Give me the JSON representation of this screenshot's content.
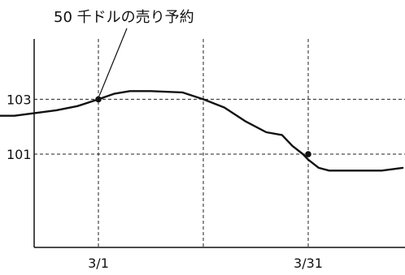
{
  "chart_data": {
    "type": "line",
    "title": "",
    "xlabel": "",
    "ylabel": "",
    "x_tick_labels": [
      "3/1",
      "3/31"
    ],
    "y_tick_labels": [
      "103",
      "101"
    ],
    "y_ticks": [
      103,
      101
    ],
    "annotation": "50 千ドルの売り予約",
    "grid": "dashed reference lines at 3/1, middle date, 3/31, 101 and 103",
    "ylim": [
      97.6,
      105.2
    ],
    "x_values": [
      -1.0,
      -0.8,
      -0.6,
      -0.4,
      -0.2,
      0.0,
      0.15,
      0.3,
      0.5,
      0.8,
      1.0,
      1.2,
      1.4,
      1.6,
      1.75,
      1.85,
      1.95,
      2.0,
      2.1,
      2.2,
      2.4,
      2.7,
      2.9
    ],
    "y_values": [
      102.4,
      102.4,
      102.5,
      102.6,
      102.75,
      103.0,
      103.2,
      103.3,
      103.3,
      103.25,
      103.0,
      102.7,
      102.2,
      101.8,
      101.7,
      101.3,
      101.0,
      100.8,
      100.5,
      100.4,
      100.4,
      100.4,
      100.5
    ],
    "markers": [
      {
        "x": 0.0,
        "y": 103.0
      },
      {
        "x": 2.0,
        "y": 101.0
      }
    ]
  }
}
